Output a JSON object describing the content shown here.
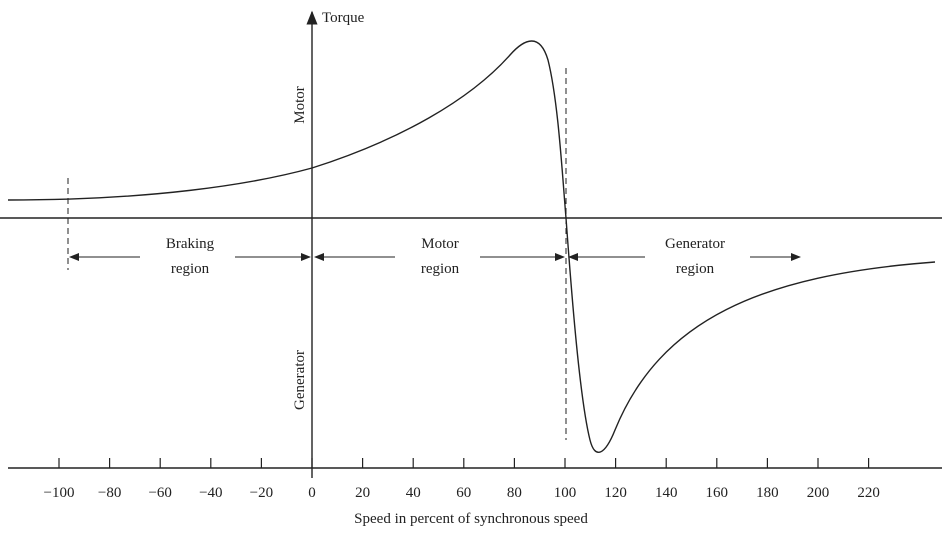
{
  "axes": {
    "y_label": "Torque",
    "x_label": "Speed in percent of synchronous speed",
    "upper_label": "Motor",
    "lower_label": "Generator",
    "xticks": [
      {
        "value": -100,
        "label": "−100"
      },
      {
        "value": -80,
        "label": "−80"
      },
      {
        "value": -60,
        "label": "−60"
      },
      {
        "value": -40,
        "label": "−40"
      },
      {
        "value": -20,
        "label": "−20"
      },
      0,
      20,
      40,
      60,
      80,
      100,
      120,
      140,
      160,
      180,
      200,
      220
    ]
  },
  "regions": [
    {
      "line1": "Braking",
      "line2": "region"
    },
    {
      "line1": "Motor",
      "line2": "region"
    },
    {
      "line1": "Generator",
      "line2": "region"
    }
  ]
}
